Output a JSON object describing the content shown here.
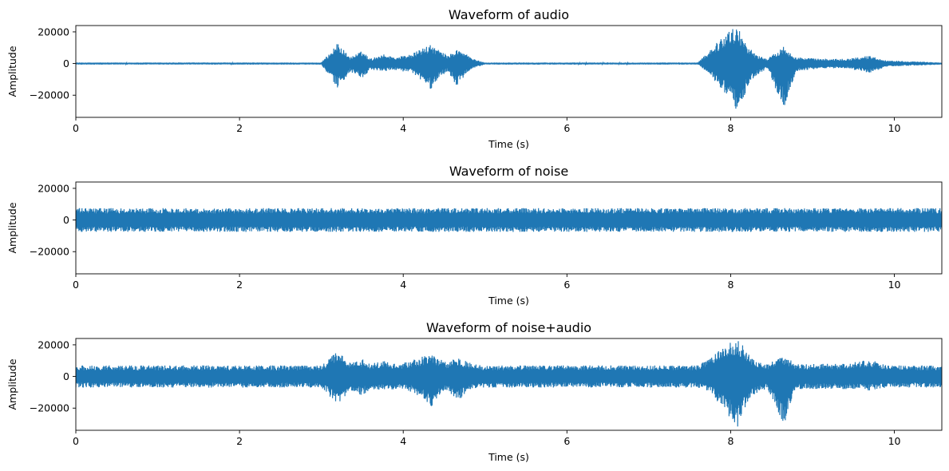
{
  "chart_data": [
    {
      "type": "line",
      "title": "Waveform of audio",
      "xlabel": "Time (s)",
      "ylabel": "Amplitude",
      "xlim": [
        0,
        10.58
      ],
      "ylim": [
        -34000,
        24000
      ],
      "xticks": [
        0,
        2,
        4,
        6,
        8,
        10
      ],
      "xtick_labels": [
        "0",
        "2",
        "4",
        "6",
        "8",
        "10"
      ],
      "yticks": [
        20000,
        0,
        -20000
      ],
      "ytick_labels": [
        "20000",
        "0",
        "−20000"
      ],
      "grid": false,
      "color": "#1f77b4",
      "series": [
        {
          "x": [
            0,
            3.0,
            3.2,
            3.35,
            3.5,
            3.6,
            3.75,
            3.9,
            4.1,
            4.25,
            4.35,
            4.45,
            4.55,
            4.65,
            4.75,
            4.85,
            5.0,
            7.6,
            7.75,
            8.0,
            8.1,
            8.2,
            8.3,
            8.45,
            8.65,
            8.8,
            9.1,
            9.4,
            9.7,
            9.9,
            10.58
          ],
          "env_max": [
            600,
            600,
            13000,
            4000,
            8000,
            3000,
            6000,
            4000,
            6000,
            10000,
            12000,
            8000,
            5000,
            9000,
            7000,
            3000,
            600,
            600,
            9000,
            22000,
            22000,
            12000,
            6000,
            3000,
            11000,
            4000,
            3000,
            3000,
            5000,
            2000,
            600
          ],
          "env_min": [
            -600,
            -600,
            -16000,
            -5000,
            -10000,
            -4000,
            -5000,
            -4000,
            -6000,
            -12000,
            -17000,
            -8000,
            -5000,
            -15000,
            -8000,
            -3000,
            -600,
            -600,
            -7000,
            -25000,
            -32000,
            -15000,
            -8000,
            -3000,
            -29000,
            -5000,
            -3000,
            -3000,
            -6000,
            -2000,
            -600
          ]
        }
      ]
    },
    {
      "type": "line",
      "title": "Waveform of noise",
      "xlabel": "Time (s)",
      "ylabel": "Amplitude",
      "xlim": [
        0,
        10.58
      ],
      "ylim": [
        -34000,
        24000
      ],
      "xticks": [
        0,
        2,
        4,
        6,
        8,
        10
      ],
      "xtick_labels": [
        "0",
        "2",
        "4",
        "6",
        "8",
        "10"
      ],
      "yticks": [
        20000,
        0,
        -20000
      ],
      "ytick_labels": [
        "20000",
        "0",
        "−20000"
      ],
      "grid": false,
      "color": "#1f77b4",
      "series": [
        {
          "x": [
            0,
            10.58
          ],
          "env_max": [
            7500,
            7500
          ],
          "env_min": [
            -7500,
            -7500
          ]
        }
      ]
    },
    {
      "type": "line",
      "title": "Waveform of noise+audio",
      "xlabel": "Time (s)",
      "ylabel": "Amplitude",
      "xlim": [
        0,
        10.58
      ],
      "ylim": [
        -34000,
        24000
      ],
      "xticks": [
        0,
        2,
        4,
        6,
        8,
        10
      ],
      "xtick_labels": [
        "0",
        "2",
        "4",
        "6",
        "8",
        "10"
      ],
      "yticks": [
        20000,
        0,
        -20000
      ],
      "ytick_labels": [
        "20000",
        "0",
        "−20000"
      ],
      "grid": false,
      "color": "#1f77b4",
      "series": [
        {
          "x": [
            0,
            3.0,
            3.2,
            3.35,
            3.5,
            3.6,
            3.75,
            3.9,
            4.1,
            4.25,
            4.35,
            4.45,
            4.55,
            4.65,
            4.75,
            4.85,
            5.0,
            7.6,
            7.75,
            8.0,
            8.1,
            8.2,
            8.3,
            8.45,
            8.65,
            8.8,
            9.1,
            9.4,
            9.7,
            9.9,
            10.58
          ],
          "env_max": [
            7000,
            7000,
            16000,
            9000,
            11000,
            8000,
            10000,
            8000,
            10000,
            13000,
            14000,
            11000,
            9000,
            12000,
            10000,
            8000,
            7000,
            7000,
            12000,
            24000,
            24000,
            15000,
            10000,
            8000,
            13000,
            8000,
            8000,
            8000,
            11000,
            7000,
            7000
          ],
          "env_min": [
            -7000,
            -7000,
            -18000,
            -9000,
            -12000,
            -8000,
            -9000,
            -8000,
            -10000,
            -15000,
            -20000,
            -11000,
            -9000,
            -17000,
            -11000,
            -8000,
            -7000,
            -7000,
            -10000,
            -27000,
            -33000,
            -17000,
            -11000,
            -8000,
            -31000,
            -8000,
            -8000,
            -8000,
            -9000,
            -7000,
            -7000
          ]
        }
      ]
    }
  ]
}
